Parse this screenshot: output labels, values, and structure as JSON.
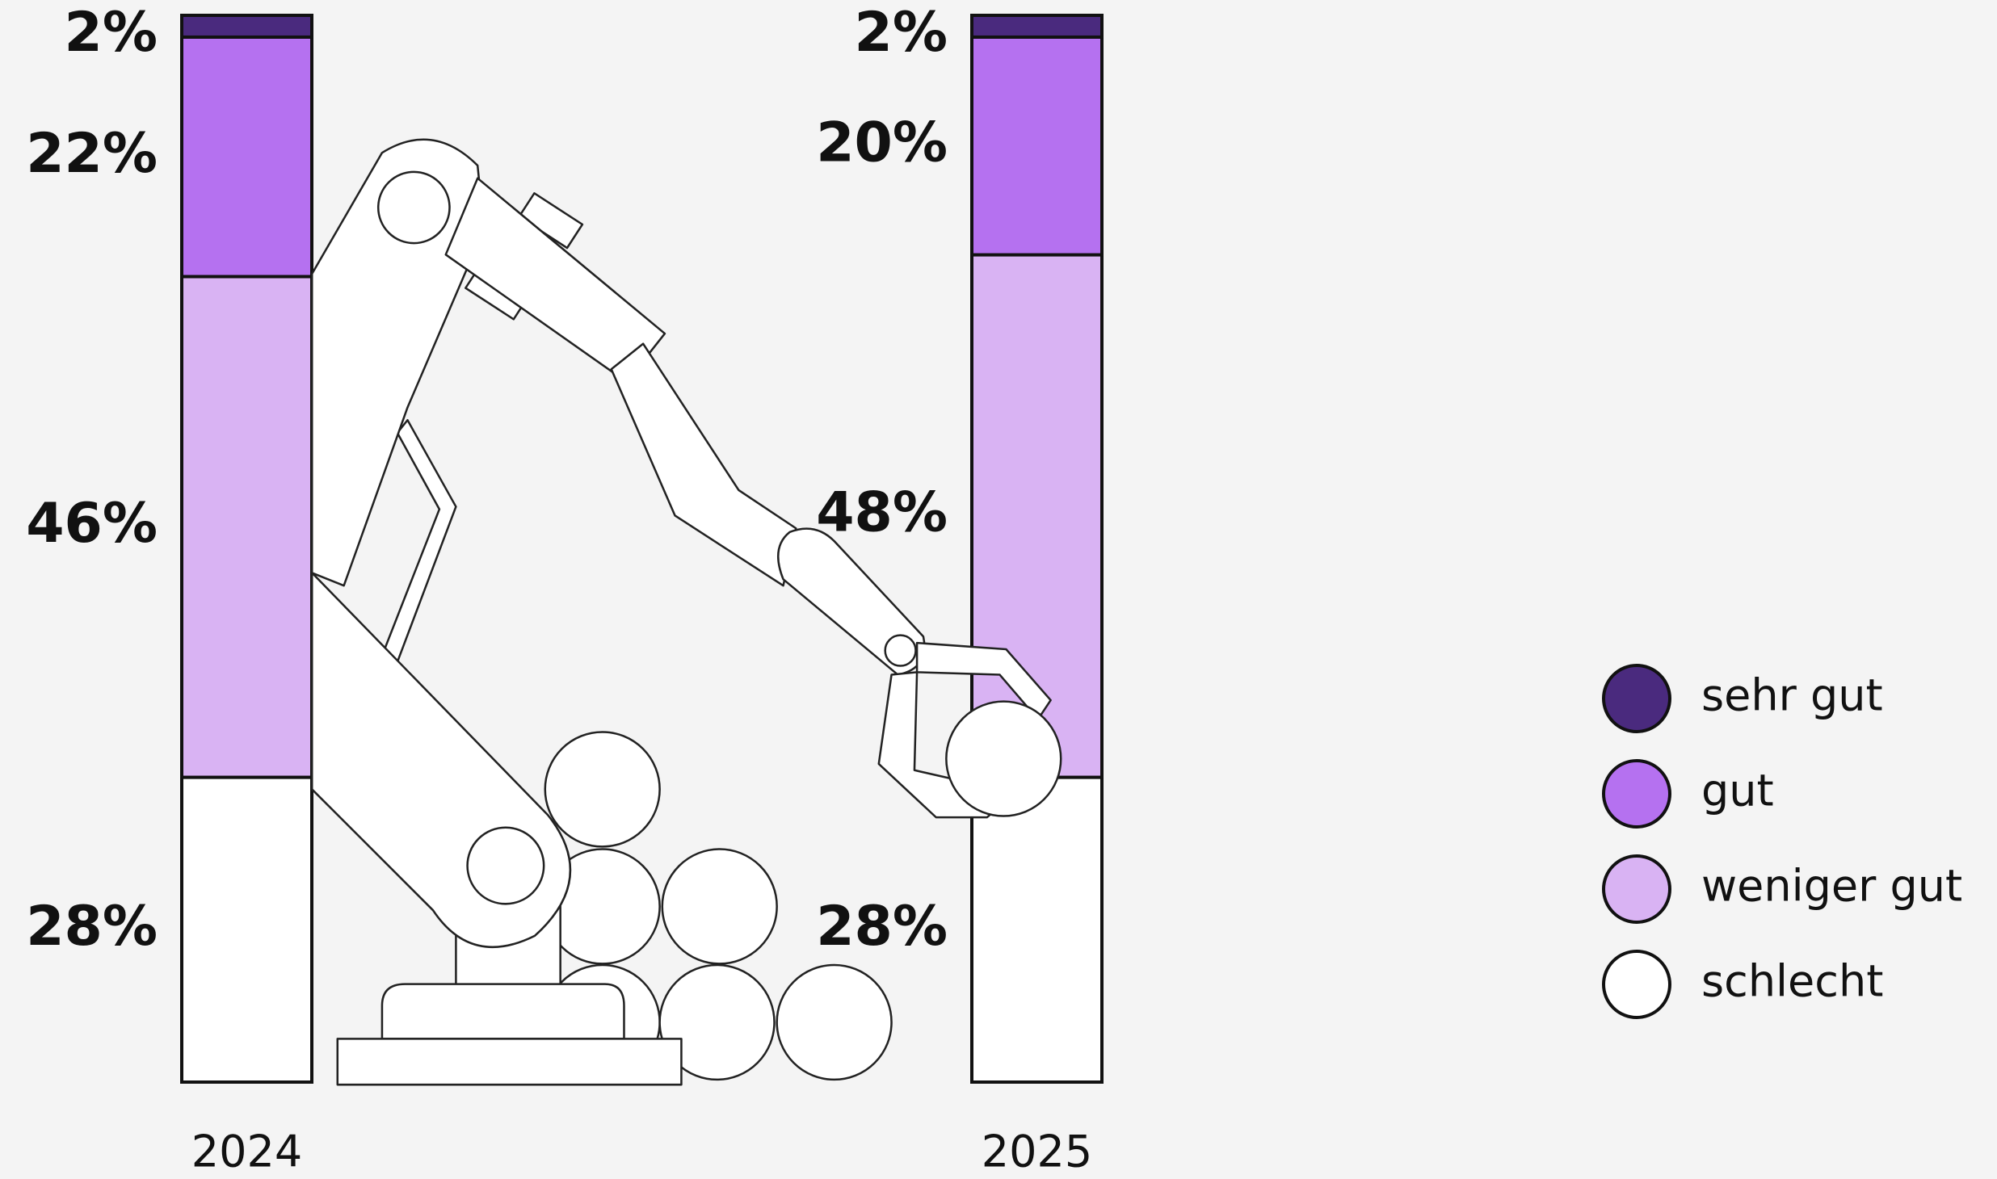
{
  "chart_data": {
    "type": "stacked_bar",
    "categories": [
      "2024",
      "2025"
    ],
    "series": [
      {
        "name": "sehr gut",
        "color": "#4a2a7e",
        "values": [
          2,
          2
        ],
        "value_labels": [
          "2%",
          "2%"
        ]
      },
      {
        "name": "gut",
        "color": "#b571f0",
        "values": [
          22,
          20
        ],
        "value_labels": [
          "22%",
          "20%"
        ]
      },
      {
        "name": "weniger gut",
        "color": "#d9b3f3",
        "values": [
          46,
          48
        ],
        "value_labels": [
          "46%",
          "48%"
        ]
      },
      {
        "name": "schlecht",
        "color": "#ffffff",
        "values": [
          28,
          28
        ],
        "value_labels": [
          "28%",
          "28%"
        ]
      }
    ]
  }
}
